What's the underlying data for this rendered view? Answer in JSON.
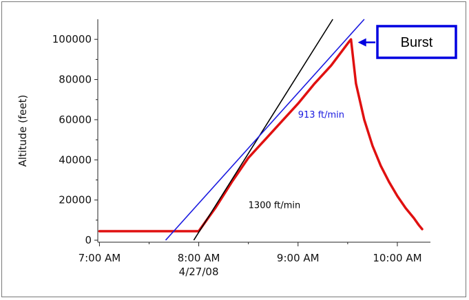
{
  "chart_data": {
    "type": "line",
    "title": "",
    "ylabel": "Altitude (feet)",
    "xlabel": "",
    "y_ticks": [
      0,
      20000,
      40000,
      60000,
      80000,
      100000
    ],
    "y_tick_labels": [
      "0",
      "20000",
      "40000",
      "60000",
      "80000",
      "100000"
    ],
    "ylim": [
      -1000,
      110000
    ],
    "x_ticks": [
      "7:00",
      "8:00",
      "9:00",
      "10:00"
    ],
    "x_tick_labels": [
      "7:00 AM",
      "8:00 AM",
      "9:00 AM",
      "10:00 AM"
    ],
    "x_sublabel": "4/27/08",
    "xlim": [
      "6:59",
      "10:20"
    ],
    "grid": false,
    "series": [
      {
        "color": "#e01010",
        "x": [
          "7:00",
          "7:30",
          "8:00",
          "8:10",
          "8:20",
          "8:30",
          "8:40",
          "8:50",
          "9:00",
          "9:10",
          "9:20",
          "9:31",
          "9:32",
          "9:35",
          "9:40",
          "9:45",
          "9:50",
          "9:55",
          "10:00",
          "10:05",
          "10:10",
          "10:13",
          "10:15"
        ],
        "y": [
          4500,
          4500,
          4500,
          16000,
          29000,
          41000,
          50000,
          59000,
          68000,
          78000,
          87000,
          99000,
          100000,
          78000,
          60000,
          47000,
          37000,
          29000,
          22000,
          16000,
          11000,
          7500,
          5500
        ]
      }
    ],
    "fit_lines": [
      {
        "color": "#000000",
        "x": [
          "7:57",
          "9:21"
        ],
        "y": [
          0,
          110000
        ]
      },
      {
        "color": "#1a1ae0",
        "x": [
          "7:40",
          "9:40"
        ],
        "y": [
          0,
          110000
        ]
      }
    ],
    "annotations": [
      {
        "text": "913 ft/min",
        "color": "#1a1ae0",
        "x": "9:00",
        "y": 61000
      },
      {
        "text": "1300 ft/min",
        "color": "#000000",
        "x": "8:30",
        "y": 16000
      }
    ],
    "callout": {
      "text": "Burst",
      "color": "#0000e0",
      "x": "9:32",
      "y": 98500
    }
  }
}
